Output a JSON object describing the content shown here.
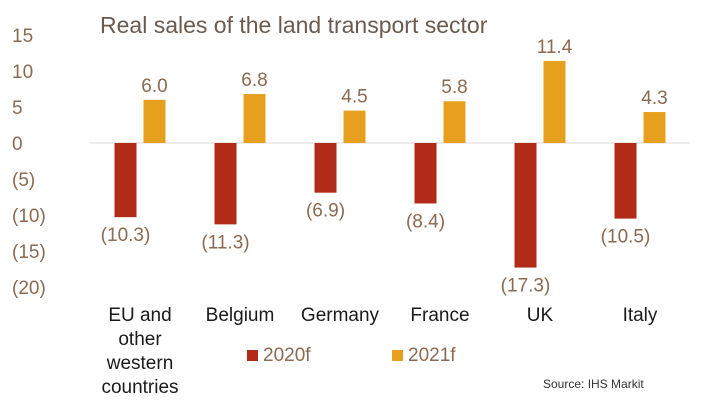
{
  "chart_data": {
    "type": "bar",
    "title": "Real sales of the land transport sector",
    "categories": [
      [
        "EU and",
        "other",
        "western",
        "countries"
      ],
      [
        "Belgium"
      ],
      [
        "Germany"
      ],
      [
        "France"
      ],
      [
        "UK"
      ],
      [
        "Italy"
      ]
    ],
    "series": [
      {
        "name": "2020f",
        "color": "#b22a18",
        "values": [
          -10.3,
          -11.3,
          -6.9,
          -8.4,
          -17.3,
          -10.5
        ],
        "labels": [
          "(10.3)",
          "(11.3)",
          "(6.9)",
          "(8.4)",
          "(17.3)",
          "(10.5)"
        ]
      },
      {
        "name": "2021f",
        "color": "#e6a01e",
        "values": [
          6.0,
          6.8,
          4.5,
          5.8,
          11.4,
          4.3
        ],
        "labels": [
          "6.0",
          "6.8",
          "4.5",
          "5.8",
          "11.4",
          "4.3"
        ]
      }
    ],
    "ylim": [
      -20,
      15
    ],
    "yticks": [
      15,
      10,
      5,
      0,
      -5,
      -10,
      -15,
      -20
    ],
    "ytick_labels": [
      "15",
      "10",
      "5",
      "0",
      "(5)",
      "(10)",
      "(15)",
      "(20)"
    ],
    "grid": false,
    "legend": "bottom",
    "source": "Source: IHS Markit"
  }
}
